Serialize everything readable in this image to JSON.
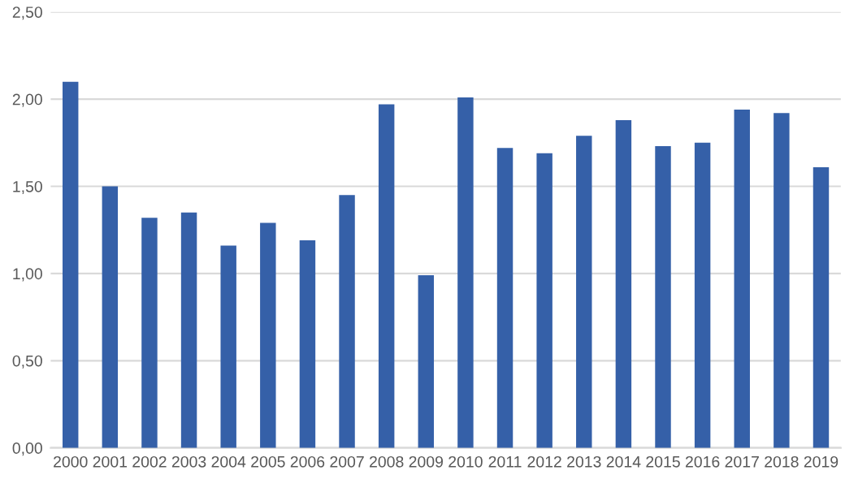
{
  "chart_data": {
    "type": "bar",
    "categories": [
      "2000",
      "2001",
      "2002",
      "2003",
      "2004",
      "2005",
      "2006",
      "2007",
      "2008",
      "2009",
      "2010",
      "2011",
      "2012",
      "2013",
      "2014",
      "2015",
      "2016",
      "2017",
      "2018",
      "2019"
    ],
    "values": [
      2.1,
      1.5,
      1.32,
      1.35,
      1.16,
      1.29,
      1.19,
      1.45,
      1.97,
      0.99,
      2.01,
      1.72,
      1.69,
      1.79,
      1.88,
      1.73,
      1.75,
      1.94,
      1.92,
      1.61
    ],
    "color": "#3560a8",
    "ylim": [
      0,
      2.5
    ],
    "yticks": [
      {
        "value": 0,
        "label": "0,00"
      },
      {
        "value": 0.5,
        "label": "0,50"
      },
      {
        "value": 1,
        "label": "1,00"
      },
      {
        "value": 1.5,
        "label": "1,50"
      },
      {
        "value": 2,
        "label": "2,00"
      },
      {
        "value": 2.5,
        "label": "2,50"
      }
    ],
    "grid": "y",
    "legend": false
  }
}
